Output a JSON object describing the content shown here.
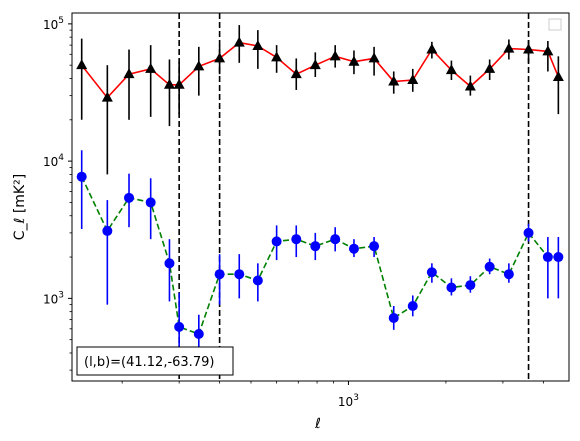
{
  "chart_data": {
    "type": "scatter",
    "title": "",
    "xlabel": "ℓ",
    "ylabel": "C_ℓ  [mK²]",
    "xscale": "log",
    "yscale": "log",
    "xlim": [
      140,
      4800
    ],
    "ylim": [
      250,
      120000
    ],
    "grid": false,
    "legend": "top-right (empty)",
    "annotation": "(l,b)=(41.12,-63.79)",
    "x_ticks": [
      {
        "value": 1000,
        "label": "10",
        "exp": "3"
      }
    ],
    "y_ticks": [
      {
        "value": 1000,
        "label": "10",
        "exp": "3"
      },
      {
        "value": 10000,
        "label": "10",
        "exp": "4"
      },
      {
        "value": 100000,
        "label": "10",
        "exp": "5"
      }
    ],
    "vlines": [
      300,
      400,
      3600
    ],
    "x": [
      150,
      180,
      210,
      245,
      280,
      300,
      345,
      400,
      460,
      525,
      600,
      690,
      790,
      910,
      1040,
      1200,
      1380,
      1580,
      1810,
      2080,
      2380,
      2730,
      3130,
      3600,
      4130,
      4450
    ],
    "series": [
      {
        "color": "#ff0000",
        "marker": "triangle",
        "marker_color": "#000000",
        "line_style": "solid",
        "y": [
          50000,
          29000,
          43000,
          47000,
          36000,
          36000,
          49000,
          56000,
          73000,
          69000,
          57000,
          43000,
          50000,
          58000,
          53000,
          56000,
          38000,
          39000,
          65000,
          46000,
          35000,
          47000,
          66000,
          65000,
          63000,
          41000
        ],
        "ylow": [
          20000,
          8000,
          20000,
          21000,
          18000,
          22000,
          30000,
          43000,
          52000,
          47000,
          44000,
          33000,
          41000,
          48000,
          43000,
          42000,
          31000,
          32000,
          56000,
          39000,
          30000,
          39000,
          55000,
          52000,
          45000,
          22000
        ],
        "yhigh": [
          78000,
          50000,
          65000,
          70000,
          55000,
          53000,
          68000,
          70000,
          98000,
          90000,
          70000,
          56000,
          62000,
          70000,
          64000,
          68000,
          45000,
          47000,
          74000,
          54000,
          42000,
          55000,
          77000,
          76000,
          75000,
          58000
        ]
      },
      {
        "color": "#008000",
        "marker": "circle",
        "marker_color": "#0000ff",
        "line_style": "dashed",
        "y": [
          7700,
          3100,
          5400,
          5000,
          1800,
          620,
          550,
          1500,
          1500,
          1350,
          2600,
          2700,
          2400,
          2700,
          2300,
          2400,
          720,
          880,
          1550,
          1200,
          1250,
          1700,
          1500,
          3000,
          2000,
          2000
        ],
        "ylow": [
          3200,
          900,
          3300,
          2700,
          950,
          300,
          400,
          900,
          1000,
          950,
          1900,
          2000,
          1900,
          2200,
          2000,
          2000,
          590,
          740,
          1300,
          1050,
          1100,
          1500,
          1300,
          2600,
          1000,
          1000
        ],
        "yhigh": [
          12000,
          5200,
          8100,
          7500,
          2700,
          1100,
          760,
          2100,
          2100,
          1800,
          3400,
          3400,
          3000,
          3300,
          2700,
          2800,
          880,
          1050,
          1800,
          1400,
          1450,
          1950,
          1800,
          3500,
          2800,
          2800
        ]
      }
    ]
  }
}
